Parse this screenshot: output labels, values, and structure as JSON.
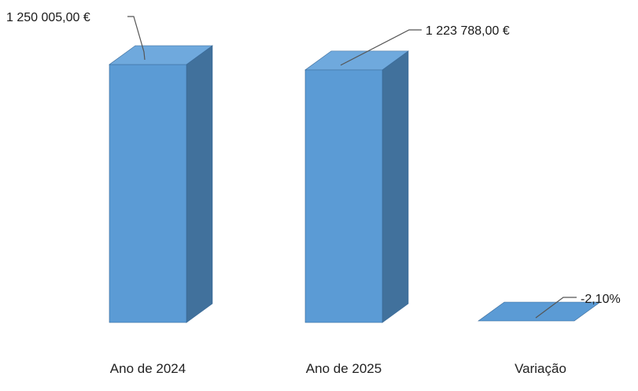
{
  "chart_data": {
    "type": "bar",
    "style": "3d-column",
    "categories": [
      "Ano de 2024",
      "Ano de 2025",
      "Variação"
    ],
    "values": [
      1250005.0,
      1223788.0,
      -2.1
    ],
    "value_units": [
      "EUR",
      "EUR",
      "percent"
    ],
    "data_labels": [
      "1 250 005,00 €",
      "1 223 788,00 €",
      "-2,10%"
    ],
    "title": "",
    "xlabel": "",
    "ylabel": "",
    "ylim": [
      0,
      1250005
    ],
    "grid": false,
    "legend": "none",
    "colors": {
      "front": "#5b9bd5",
      "top": "#6fa9dd",
      "side": "#41719c",
      "edge": "#3a6a98"
    }
  }
}
